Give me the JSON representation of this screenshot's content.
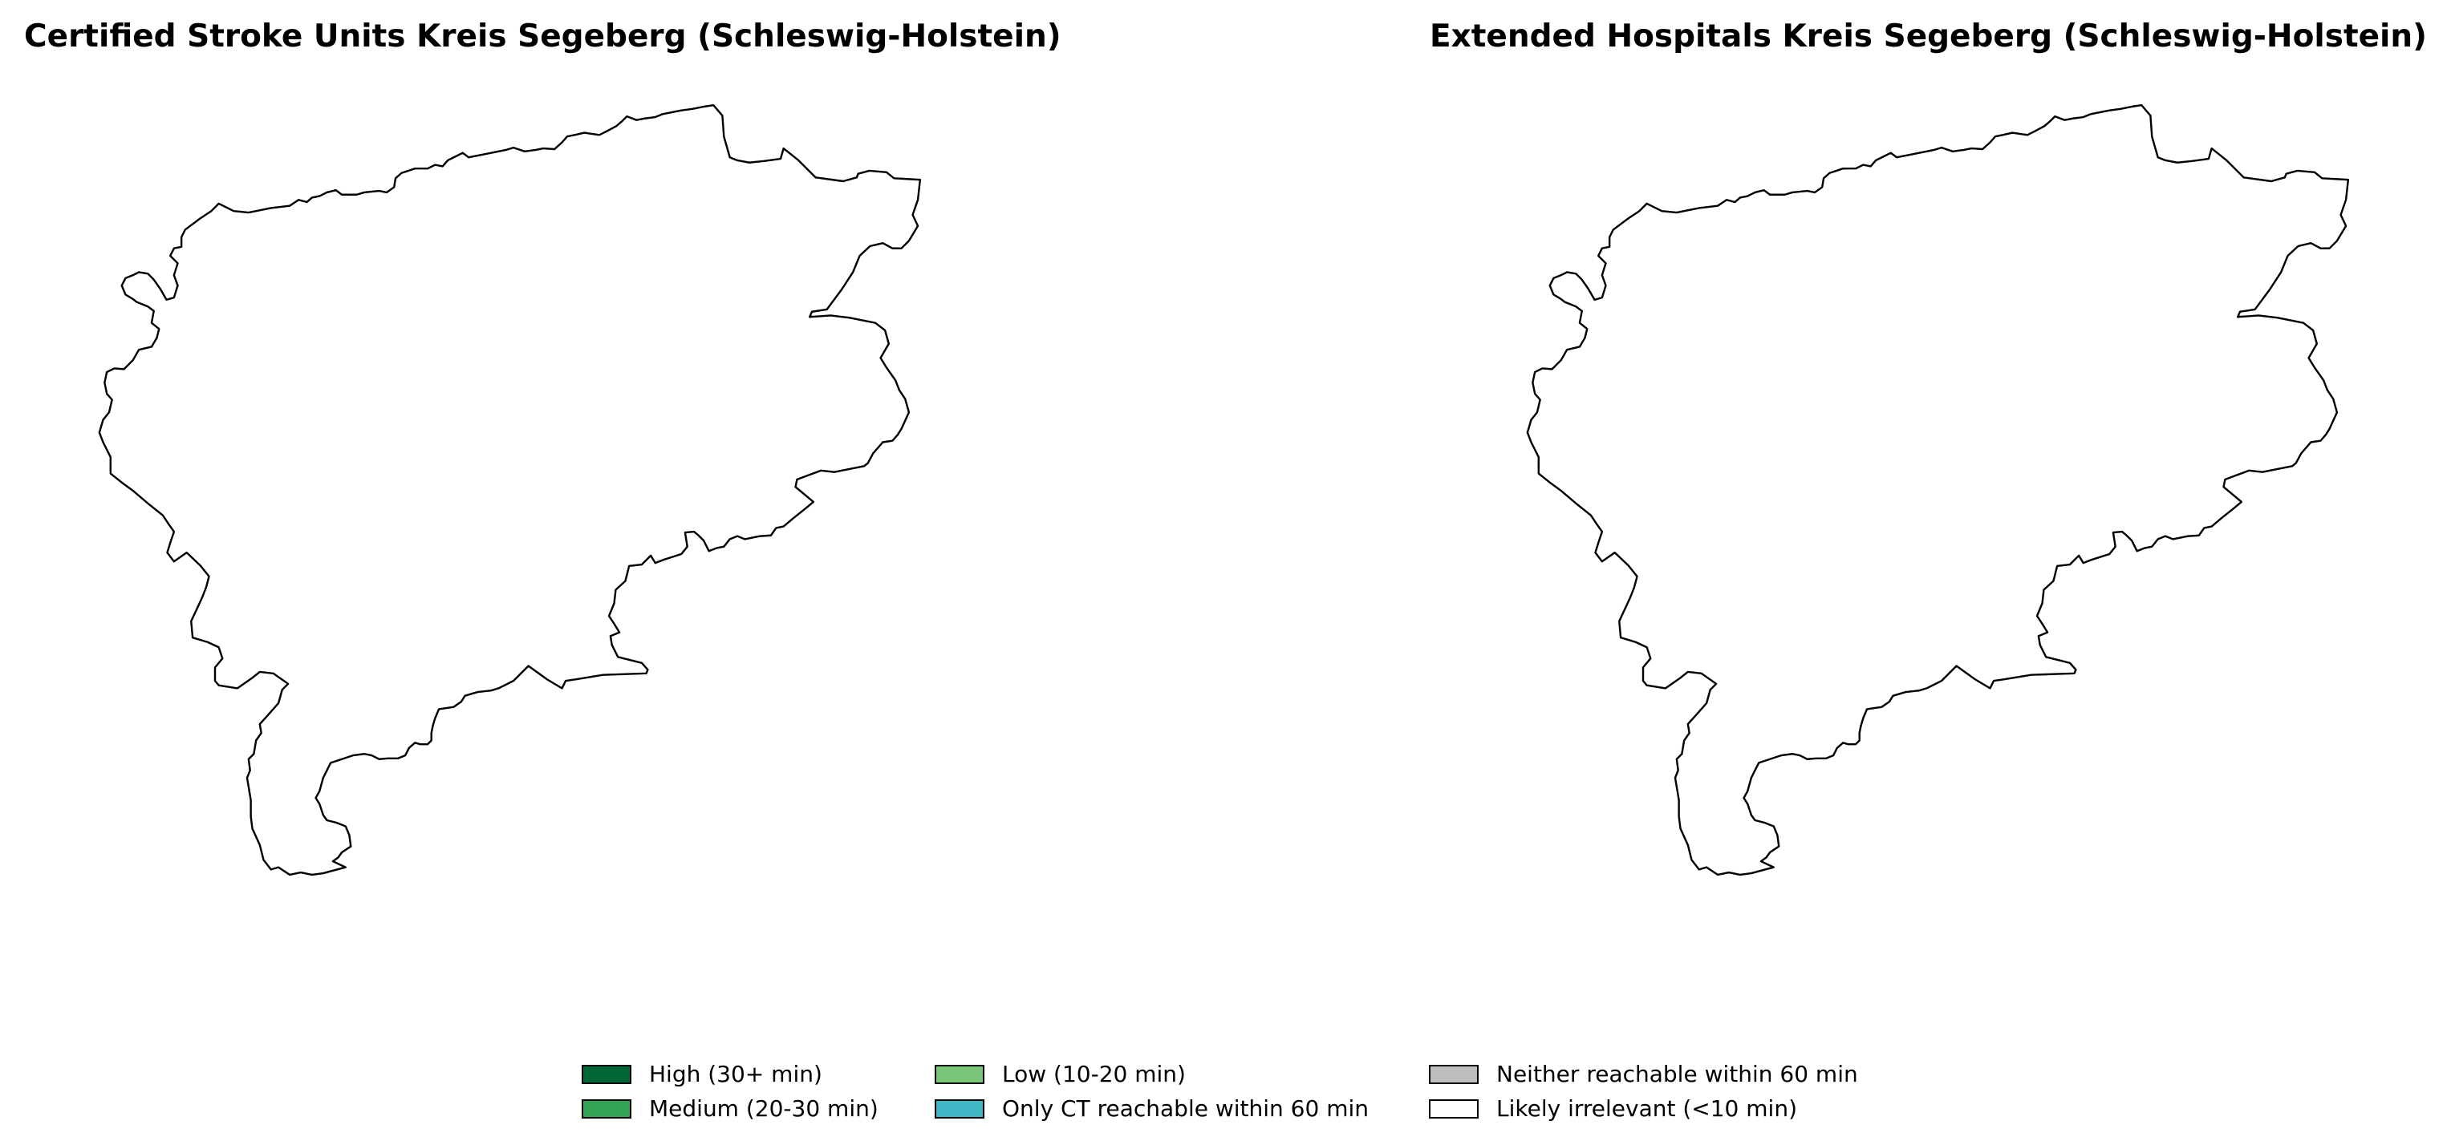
{
  "panels": [
    {
      "title": "Certified Stroke Units Kreis Segeberg (Schleswig-Holstein)",
      "region": "Kreis Segeberg",
      "fill_color": "#ffffff"
    },
    {
      "title": "Extended Hospitals Kreis Segeberg (Schleswig-Holstein)",
      "region": "Kreis Segeberg",
      "fill_color": "#ffffff"
    }
  ],
  "legend": {
    "items": [
      {
        "label": "High (30+ min)",
        "color": "#006837"
      },
      {
        "label": "Medium (20-30 min)",
        "color": "#31a354"
      },
      {
        "label": "Low (10-20 min)",
        "color": "#78c679"
      },
      {
        "label": "Only CT reachable within 60 min",
        "color": "#41b6c4"
      },
      {
        "label": "Neither reachable within 60 min",
        "color": "#bdbdbd"
      },
      {
        "label": "Likely irrelevant (<10 min)",
        "color": "#ffffff"
      }
    ]
  }
}
